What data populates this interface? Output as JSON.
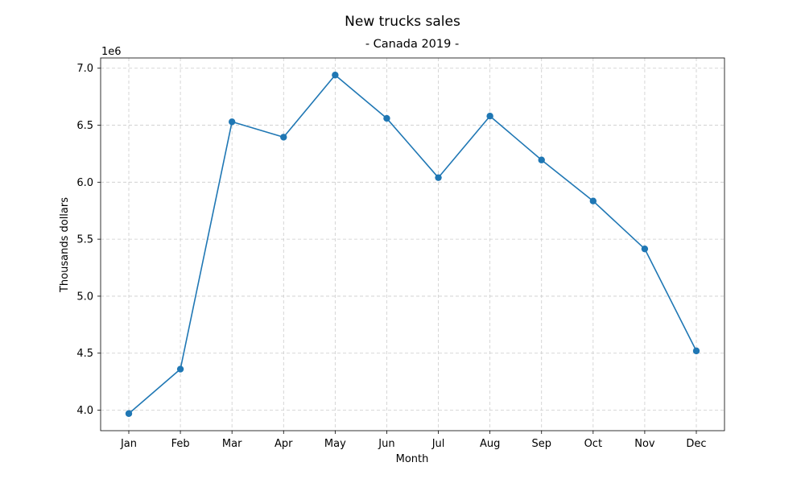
{
  "chart_data": {
    "type": "line",
    "title": "New trucks sales",
    "subtitle": "- Canada 2019 -",
    "xlabel": "Month",
    "ylabel": "Thousands dollars",
    "y_offset_label": "1e6",
    "categories": [
      "Jan",
      "Feb",
      "Mar",
      "Apr",
      "May",
      "Jun",
      "Jul",
      "Aug",
      "Sep",
      "Oct",
      "Nov",
      "Dec"
    ],
    "series": [
      {
        "values": [
          3970000,
          4360000,
          6530000,
          6395000,
          6940000,
          6560000,
          6040000,
          6580000,
          6195000,
          5835000,
          5415000,
          4520000
        ],
        "color": "#1f77b4",
        "marker": "circle"
      }
    ],
    "yticks": [
      "4.0",
      "4.5",
      "5.0",
      "5.5",
      "6.0",
      "6.5",
      "7.0"
    ],
    "ytick_values": [
      4000000,
      4500000,
      5000000,
      5500000,
      6000000,
      6500000,
      7000000
    ],
    "ylim": [
      3820000,
      7090000
    ],
    "grid": true,
    "grid_color": "#cccccc"
  }
}
